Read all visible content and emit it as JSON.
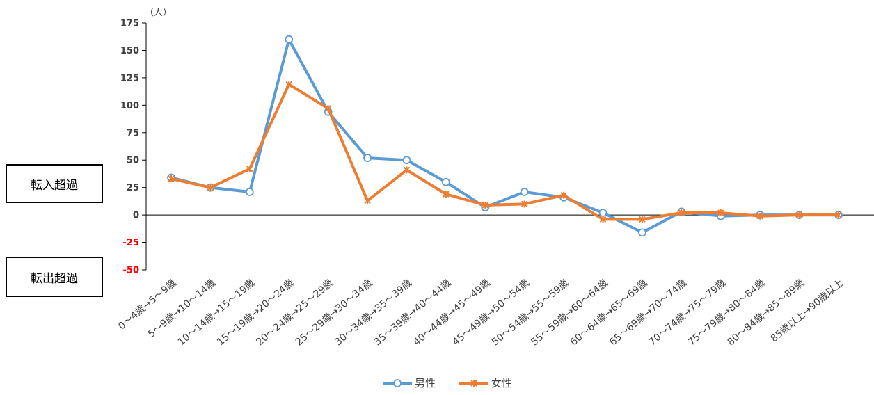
{
  "chart_data": {
    "type": "line",
    "unit_label": "（人）",
    "categories": [
      "0～4歳→5～9歳",
      "5～9歳→10～14歳",
      "10～14歳→15～19歳",
      "15～19歳→20～24歳",
      "20～24歳→25～29歳",
      "25～29歳→30～34歳",
      "30～34歳→35～39歳",
      "35～39歳→40～44歳",
      "40～44歳→45～49歳",
      "45～49歳→50～54歳",
      "50～54歳→55～59歳",
      "55～59歳→60～64歳",
      "60～64歳→65～69歳",
      "65～69歳→70～74歳",
      "70～74歳→75～79歳",
      "75～79歳→80～84歳",
      "80～84歳→85～89歳",
      "85歳以上→90歳以上"
    ],
    "series": [
      {
        "name": "男性",
        "color": "#5b9bd5",
        "marker": "circle",
        "values": [
          34,
          25,
          21,
          160,
          94,
          52,
          50,
          30,
          7,
          21,
          16,
          2,
          -16,
          3,
          -1,
          0,
          0,
          0
        ]
      },
      {
        "name": "女性",
        "color": "#ed7d31",
        "marker": "x",
        "values": [
          33,
          25,
          42,
          119,
          97,
          13,
          41,
          19,
          9,
          10,
          18,
          -4,
          -4,
          2,
          2,
          -1,
          0,
          0
        ]
      }
    ],
    "ylim": [
      -50,
      175
    ],
    "yticks": [
      "175",
      "150",
      "125",
      "100",
      "75",
      "50",
      "25",
      "0",
      "-25",
      "-50"
    ],
    "negative_tick_color": "#ff0000",
    "legend_position": "bottom",
    "grid": false
  },
  "annotations": {
    "inflow_label": "転入超過",
    "outflow_label": "転出超過"
  }
}
